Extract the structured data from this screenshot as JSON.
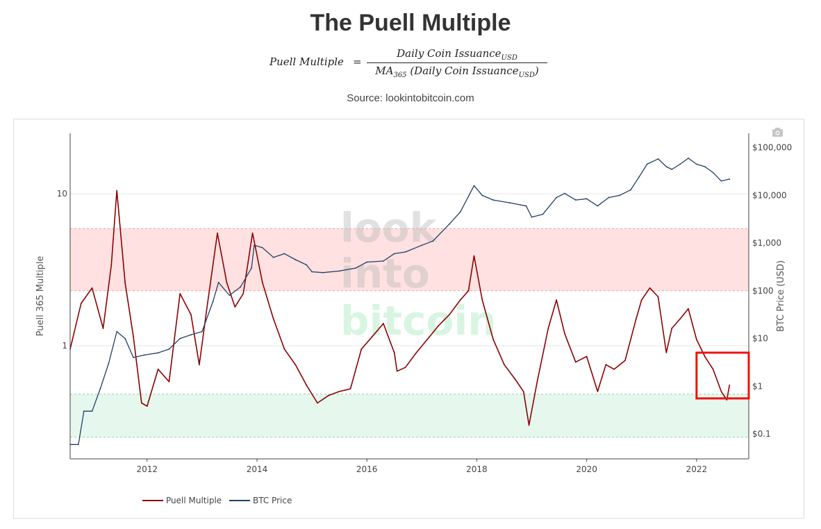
{
  "header": {
    "title": "The Puell Multiple",
    "formula": {
      "lhs": "Puell Multiple",
      "eq": "=",
      "numerator": "Daily Coin Issuance",
      "numerator_sub": "USD",
      "denominator_pre": "MA",
      "denominator_pre_sub": "365",
      "denominator_mid": " (Daily Coin Issuance",
      "denominator_sub": "USD",
      "denominator_post": ")"
    },
    "source": "Source: lookintobitcoin.com"
  },
  "watermark": {
    "line1": "look",
    "line2": "into",
    "line3": "bitcoin"
  },
  "colors": {
    "puell": "#8b0000",
    "btc": "#1f3f66",
    "red_band": "#ffe1e1",
    "green_band": "#e6f7ee"
  },
  "chart_data": {
    "type": "line",
    "title": "The Puell Multiple",
    "x_ticks": [
      "2012",
      "2014",
      "2016",
      "2018",
      "2020",
      "2022"
    ],
    "x_range": [
      2010.6,
      2022.95
    ],
    "left_axis": {
      "label": "Puell 365 Multiple",
      "scale": "log",
      "range": [
        0.18,
        25
      ],
      "tick_values": [
        1,
        10
      ],
      "tick_labels": [
        "1",
        "10"
      ]
    },
    "right_axis": {
      "label": "BTC Price (USD)",
      "scale": "log",
      "range": [
        0.03,
        200000
      ],
      "tick_values": [
        0.1,
        1,
        10,
        100,
        1000,
        10000,
        100000
      ],
      "tick_labels": [
        "$0.1",
        "$1",
        "$10",
        "$100",
        "$1,000",
        "$10,000",
        "$100,000"
      ]
    },
    "bands": [
      {
        "name": "red zone",
        "axis": "left",
        "from": 2.3,
        "to": 5.9
      },
      {
        "name": "green zone",
        "axis": "left",
        "from": 0.25,
        "to": 0.48
      }
    ],
    "series": [
      {
        "name": "Puell Multiple",
        "axis": "left",
        "x": [
          2010.6,
          2010.8,
          2011.0,
          2011.2,
          2011.35,
          2011.45,
          2011.6,
          2011.75,
          2011.9,
          2012.0,
          2012.2,
          2012.4,
          2012.6,
          2012.8,
          2012.95,
          2013.1,
          2013.28,
          2013.45,
          2013.6,
          2013.75,
          2013.92,
          2014.1,
          2014.3,
          2014.5,
          2014.7,
          2014.9,
          2015.1,
          2015.3,
          2015.5,
          2015.7,
          2015.9,
          2016.1,
          2016.3,
          2016.5,
          2016.55,
          2016.7,
          2016.9,
          2017.1,
          2017.3,
          2017.5,
          2017.7,
          2017.85,
          2017.95,
          2018.1,
          2018.3,
          2018.5,
          2018.7,
          2018.85,
          2018.95,
          2019.1,
          2019.3,
          2019.45,
          2019.6,
          2019.8,
          2020.0,
          2020.2,
          2020.35,
          2020.5,
          2020.7,
          2020.9,
          2021.0,
          2021.15,
          2021.3,
          2021.45,
          2021.55,
          2021.7,
          2021.85,
          2022.0,
          2022.15,
          2022.3,
          2022.45,
          2022.55,
          2022.6
        ],
        "values": [
          0.95,
          1.9,
          2.4,
          1.3,
          3.4,
          10.5,
          2.6,
          1.15,
          0.42,
          0.4,
          0.7,
          0.58,
          2.2,
          1.6,
          0.75,
          1.9,
          5.5,
          2.6,
          1.8,
          2.2,
          5.5,
          2.6,
          1.5,
          0.95,
          0.75,
          0.55,
          0.42,
          0.47,
          0.5,
          0.52,
          0.95,
          1.15,
          1.4,
          0.9,
          0.68,
          0.72,
          0.9,
          1.1,
          1.35,
          1.6,
          2.0,
          2.3,
          3.9,
          2.0,
          1.1,
          0.75,
          0.6,
          0.5,
          0.3,
          0.58,
          1.3,
          2.0,
          1.2,
          0.78,
          0.85,
          0.5,
          0.75,
          0.7,
          0.8,
          1.5,
          2.0,
          2.4,
          2.1,
          0.9,
          1.3,
          1.5,
          1.75,
          1.1,
          0.85,
          0.7,
          0.5,
          0.44,
          0.55
        ]
      },
      {
        "name": "BTC Price",
        "axis": "right",
        "x": [
          2010.6,
          2010.75,
          2010.85,
          2011.0,
          2011.15,
          2011.3,
          2011.45,
          2011.6,
          2011.75,
          2011.95,
          2012.2,
          2012.4,
          2012.6,
          2012.8,
          2013.0,
          2013.2,
          2013.3,
          2013.5,
          2013.7,
          2013.9,
          2013.95,
          2014.1,
          2014.3,
          2014.5,
          2014.7,
          2014.9,
          2015.0,
          2015.2,
          2015.5,
          2015.8,
          2016.0,
          2016.3,
          2016.5,
          2016.7,
          2017.0,
          2017.2,
          2017.5,
          2017.7,
          2017.95,
          2018.1,
          2018.3,
          2018.6,
          2018.9,
          2019.0,
          2019.2,
          2019.45,
          2019.6,
          2019.8,
          2020.0,
          2020.2,
          2020.4,
          2020.6,
          2020.8,
          2020.95,
          2021.1,
          2021.3,
          2021.45,
          2021.55,
          2021.7,
          2021.85,
          2022.0,
          2022.15,
          2022.3,
          2022.45,
          2022.6
        ],
        "values": [
          0.06,
          0.06,
          0.3,
          0.3,
          0.9,
          3.0,
          14.0,
          10.0,
          4.0,
          4.5,
          5.0,
          6.0,
          10.0,
          12.0,
          14.0,
          60.0,
          150.0,
          80.0,
          120.0,
          300.0,
          900.0,
          800.0,
          500.0,
          600.0,
          450.0,
          350.0,
          250.0,
          240.0,
          260.0,
          300.0,
          400.0,
          420.0,
          600.0,
          650.0,
          900.0,
          1100.0,
          2500.0,
          4500.0,
          16000.0,
          10000.0,
          8000.0,
          7000.0,
          6000.0,
          3500.0,
          4000.0,
          9000.0,
          11000.0,
          8000.0,
          8500.0,
          6000.0,
          9000.0,
          10000.0,
          13000.0,
          24000.0,
          45000.0,
          58000.0,
          40000.0,
          35000.0,
          45000.0,
          60000.0,
          45000.0,
          40000.0,
          30000.0,
          20000.0,
          22000.0
        ]
      }
    ],
    "annotation": {
      "type": "rectangle",
      "x": [
        2022.0,
        2022.95
      ],
      "y_left": [
        0.45,
        0.9
      ]
    },
    "legend": {
      "position": "bottom-left",
      "entries": [
        "Puell Multiple",
        "BTC Price"
      ]
    }
  }
}
